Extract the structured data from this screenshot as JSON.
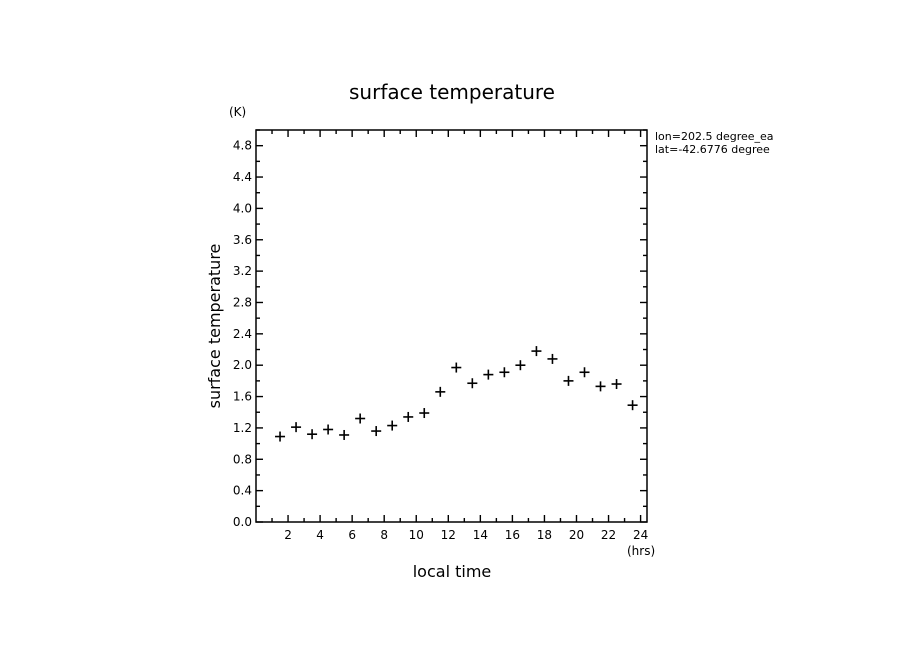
{
  "chart_data": {
    "type": "scatter",
    "title": "surface temperature",
    "xlabel": "local time",
    "ylabel": "surface temperature",
    "x_unit": "(hrs)",
    "y_unit": "(K)",
    "xlim": [
      0,
      24.4
    ],
    "ylim": [
      0,
      5
    ],
    "x_ticks": [
      2,
      4,
      6,
      8,
      10,
      12,
      14,
      16,
      18,
      20,
      22,
      24
    ],
    "y_ticks": [
      0.0,
      0.4,
      0.8,
      1.2,
      1.6,
      2.0,
      2.4,
      2.8,
      3.2,
      3.6,
      4.0,
      4.4,
      4.8
    ],
    "y_tick_labels": [
      "0.0",
      "0.4",
      "0.8",
      "1.2",
      "1.6",
      "2.0",
      "2.4",
      "2.8",
      "3.2",
      "3.6",
      "4.0",
      "4.4",
      "4.8"
    ],
    "x": [
      1.5,
      2.5,
      3.5,
      4.5,
      5.5,
      6.5,
      7.5,
      8.5,
      9.5,
      10.5,
      11.5,
      12.5,
      13.5,
      14.5,
      15.5,
      16.5,
      17.5,
      18.5,
      19.5,
      20.5,
      21.5,
      22.5,
      23.5
    ],
    "y": [
      1.09,
      1.21,
      1.12,
      1.18,
      1.11,
      1.32,
      1.16,
      1.23,
      1.34,
      1.39,
      1.66,
      1.97,
      1.77,
      1.88,
      1.91,
      2.0,
      2.18,
      2.08,
      1.8,
      1.91,
      1.73,
      1.76,
      1.49
    ],
    "annotations": [
      "lon=202.5 degree_ea",
      "lat=-42.6776 degree"
    ]
  }
}
